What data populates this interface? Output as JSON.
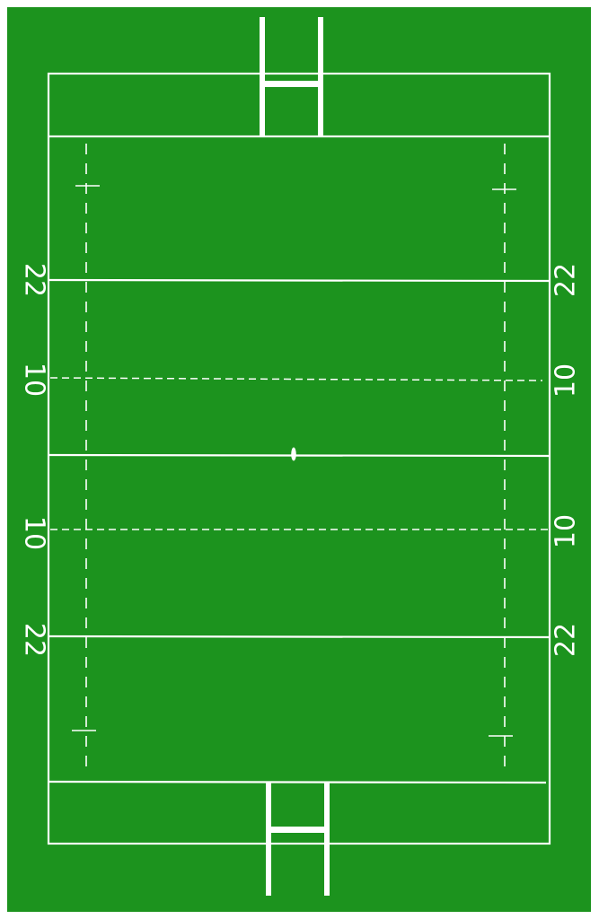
{
  "pitch": {
    "colors": {
      "grass": "#1c931e",
      "lines": "#ffffff",
      "border": "#ffffff"
    },
    "labels": {
      "top_22_left": "22",
      "top_22_right": "22",
      "top_10_left": "10",
      "top_10_right": "10",
      "bottom_10_left": "10",
      "bottom_10_right": "10",
      "bottom_22_left": "22",
      "bottom_22_right": "22"
    }
  }
}
